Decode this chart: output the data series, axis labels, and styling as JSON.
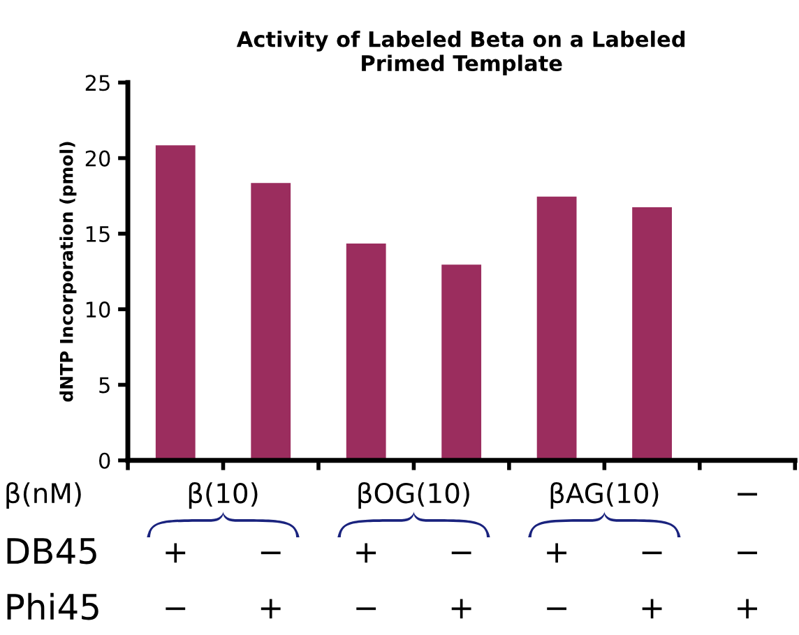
{
  "chart_data": {
    "type": "bar",
    "title": "Activity of Labeled Beta on a Labeled\nPrimed Template",
    "ylabel": "dNTP Incorporation (pmol)",
    "categories": [
      "+\n−",
      "−\n+",
      "+\n−",
      "−\n+",
      "+\n−",
      "−\n+",
      "−\n−\n+"
    ],
    "values": [
      20.8,
      18.3,
      14.3,
      12.9,
      17.4,
      16.7,
      0
    ],
    "color": "#9b2d5e",
    "ylim": [
      0,
      25
    ],
    "yticks": [
      0,
      5,
      10,
      15,
      20,
      25
    ],
    "grid": false,
    "legend": false,
    "annotations": [
      "β(nM)",
      "DB45",
      "Phi45",
      "β(10)",
      "βOG(10)",
      "βAG(10)"
    ]
  }
}
